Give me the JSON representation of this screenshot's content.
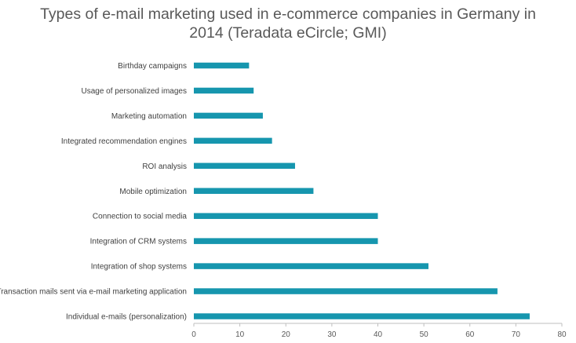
{
  "chart_data": {
    "type": "bar",
    "orientation": "horizontal",
    "title_lines": [
      "Types of e-mail marketing used in e-commerce companies in Germany in",
      "2014 (Teradata eCircle; GMI)"
    ],
    "categories": [
      "Birthday campaigns",
      "Usage of personalized images",
      "Marketing automation",
      "Integrated recommendation engines",
      "ROI analysis",
      "Mobile optimization",
      "Connection to social media",
      "Integration of CRM systems",
      "Integration of shop systems",
      "Transaction mails sent via e-mail marketing application",
      "Individual e-mails (personalization)"
    ],
    "values": [
      12,
      13,
      15,
      17,
      22,
      26,
      40,
      40,
      51,
      66,
      73
    ],
    "xlim": [
      0,
      80
    ],
    "xticks": [
      0,
      10,
      20,
      30,
      40,
      50,
      60,
      70,
      80
    ],
    "grid": false,
    "legend": "none",
    "bar_color": "#1696AE"
  }
}
